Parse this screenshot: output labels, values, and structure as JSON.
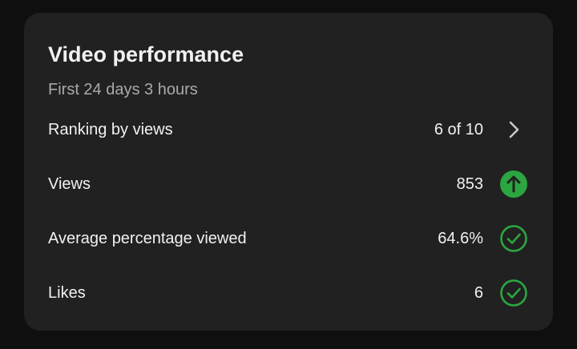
{
  "card": {
    "title": "Video performance",
    "subtitle": "First 24 days 3 hours",
    "rows": [
      {
        "label": "Ranking by views",
        "value": "6 of 10"
      },
      {
        "label": "Views",
        "value": "853"
      },
      {
        "label": "Average percentage viewed",
        "value": "64.6%"
      },
      {
        "label": "Likes",
        "value": "6"
      }
    ]
  }
}
